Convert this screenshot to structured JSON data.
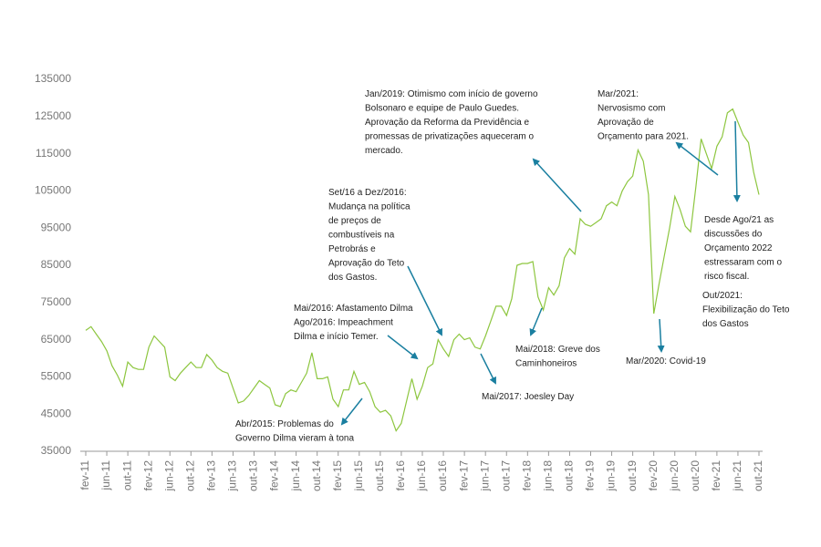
{
  "chart_data": {
    "type": "line",
    "categories": [
      "fev-11",
      null,
      null,
      null,
      "jun-11",
      null,
      null,
      null,
      "out-11",
      null,
      null,
      null,
      "fev-12",
      null,
      null,
      null,
      "jun-12",
      null,
      null,
      null,
      "out-12",
      null,
      null,
      null,
      "fev-13",
      null,
      null,
      null,
      "jun-13",
      null,
      null,
      null,
      "out-13",
      null,
      null,
      null,
      "fev-14",
      null,
      null,
      null,
      "jun-14",
      null,
      null,
      null,
      "out-14",
      null,
      null,
      null,
      "fev-15",
      null,
      null,
      null,
      "jun-15",
      null,
      null,
      null,
      "out-15",
      null,
      null,
      null,
      "fev-16",
      null,
      null,
      null,
      "jun-16",
      null,
      null,
      null,
      "out-16",
      null,
      null,
      null,
      "fev-17",
      null,
      null,
      null,
      "jun-17",
      null,
      null,
      null,
      "out-17",
      null,
      null,
      null,
      "fev-18",
      null,
      null,
      null,
      "jun-18",
      null,
      null,
      null,
      "out-18",
      null,
      null,
      null,
      "fev-19",
      null,
      null,
      null,
      "jun-19",
      null,
      null,
      null,
      "out-19",
      null,
      null,
      null,
      "fev-20",
      null,
      null,
      null,
      "jun-20",
      null,
      null,
      null,
      "out-20",
      null,
      null,
      null,
      "fev-21",
      null,
      null,
      null,
      "jun-21",
      null,
      null,
      null,
      "out-21"
    ],
    "values": [
      67500,
      68500,
      66500,
      64500,
      62000,
      58000,
      55500,
      52500,
      59000,
      57500,
      57000,
      57000,
      63000,
      66000,
      64500,
      63000,
      55000,
      54000,
      56000,
      57500,
      59000,
      57500,
      57500,
      61000,
      59500,
      57500,
      56500,
      56000,
      52000,
      48000,
      48500,
      50000,
      52000,
      54000,
      53000,
      52000,
      47500,
      47000,
      50500,
      51500,
      51000,
      53500,
      56000,
      61500,
      54500,
      54500,
      55000,
      49000,
      47000,
      51500,
      51500,
      56500,
      53000,
      53500,
      51000,
      47000,
      45500,
      46000,
      44500,
      40500,
      42500,
      48500,
      54500,
      49000,
      52500,
      57500,
      58500,
      65000,
      62500,
      60500,
      65000,
      66500,
      65000,
      65500,
      63000,
      62500,
      66000,
      70000,
      74000,
      74000,
      71500,
      76000,
      85000,
      85500,
      85500,
      86000,
      76500,
      73000,
      79000,
      77000,
      79500,
      87000,
      89500,
      88000,
      97500,
      96000,
      95500,
      96500,
      97500,
      101000,
      102000,
      101000,
      105000,
      107500,
      109000,
      116000,
      113000,
      104000,
      72000,
      80000,
      87500,
      95000,
      103500,
      100000,
      95500,
      94000,
      106000,
      119000,
      115000,
      111000,
      117000,
      119500,
      126000,
      127000,
      123500,
      120000,
      118000,
      110000,
      104000
    ],
    "color": "#8dc63f",
    "ylim": [
      35000,
      135000
    ],
    "yticks": [
      35000,
      45000,
      55000,
      65000,
      75000,
      85000,
      95000,
      105000,
      115000,
      125000,
      135000
    ],
    "grid": false,
    "annotations": [
      [
        "Jan/2019: Otimismo com início de governo",
        "Bolsonaro e equipe de Paulo Guedes.",
        "Aprovação da Reforma da Previdência e",
        "promessas de privatizações aqueceram o",
        "mercado."
      ],
      [
        "Mar/2021:",
        "Nervosismo com",
        "Aprovação de",
        "Orçamento para 2021."
      ],
      [
        "Set/16 a Dez/2016:",
        "Mudança na política",
        "de preços de",
        "combustíveis na",
        "Petrobrás e",
        "Aprovação do Teto",
        "dos Gastos."
      ],
      [
        "Mai/2016: Afastamento Dilma",
        "Ago/2016: Impeachment",
        "Dilma e início Temer."
      ],
      [
        "Abr/2015: Problemas do",
        "Governo Dilma vieram à tona"
      ],
      [
        "Mai/2017: Joesley Day"
      ],
      [
        "Mai/2018: Greve dos",
        "Caminhoneiros"
      ],
      [
        "Mar/2020: Covid-19"
      ],
      [
        "Desde Ago/21 as",
        "discussões do",
        "Orçamento 2022",
        "estressaram com o",
        "risco fiscal."
      ],
      [
        "Out/2021:",
        "Flexibilização do Teto",
        "dos Gastos"
      ]
    ]
  }
}
